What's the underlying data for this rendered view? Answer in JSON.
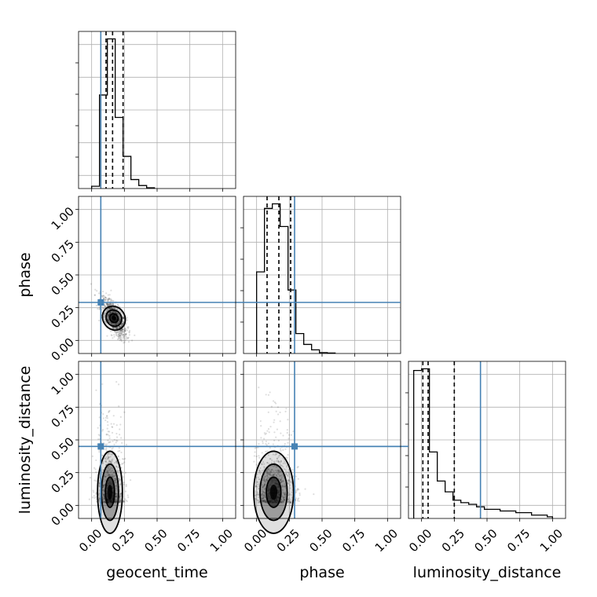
{
  "chart_data": {
    "type": "corner",
    "parameters": [
      "geocent_time",
      "phase",
      "luminosity_distance"
    ],
    "axis_range": [
      -0.1,
      1.1
    ],
    "ticks": [
      0.0,
      0.25,
      0.5,
      0.75,
      1.0
    ],
    "tick_labels": [
      "0.00",
      "0.25",
      "0.50",
      "0.75",
      "1.00"
    ],
    "grid": true,
    "truth_color": "#4682b4",
    "truths": {
      "geocent_time": 0.07,
      "phase": 0.29,
      "luminosity_distance": 0.45
    },
    "quantiles": {
      "geocent_time": [
        0.11,
        0.16,
        0.24
      ],
      "phase": [
        0.08,
        0.17,
        0.26
      ],
      "luminosity_distance": [
        0.01,
        0.05,
        0.25
      ]
    },
    "histograms": {
      "geocent_time": {
        "bin_edges": [
          0.0,
          0.06,
          0.12,
          0.18,
          0.24,
          0.3,
          0.36,
          0.42,
          0.48
        ],
        "counts": [
          3,
          125,
          200,
          95,
          43,
          12,
          4,
          1
        ]
      },
      "phase": {
        "bin_edges": [
          0.0,
          0.06,
          0.12,
          0.18,
          0.24,
          0.3,
          0.36,
          0.42,
          0.48,
          0.54,
          0.6
        ],
        "counts": [
          90,
          160,
          165,
          140,
          70,
          22,
          10,
          4,
          1,
          0.5
        ]
      },
      "luminosity_distance": {
        "bin_edges": [
          -0.06,
          0.0,
          0.06,
          0.12,
          0.18,
          0.24,
          0.3,
          0.36,
          0.42,
          0.48,
          0.6,
          0.72,
          0.84,
          0.96,
          1.0
        ],
        "counts": [
          178,
          180,
          80,
          45,
          32,
          22,
          19,
          17,
          14,
          11,
          9,
          7,
          4,
          2
        ]
      }
    },
    "pairs": [
      {
        "x": "geocent_time",
        "y": "phase",
        "center": [
          0.17,
          0.17
        ],
        "spread": [
          0.05,
          0.08
        ],
        "corr": -0.7
      },
      {
        "x": "geocent_time",
        "y": "luminosity_distance",
        "center": [
          0.14,
          0.1
        ],
        "spread": [
          0.05,
          0.22
        ],
        "corr": 0.0
      },
      {
        "x": "phase",
        "y": "luminosity_distance",
        "center": [
          0.13,
          0.1
        ],
        "spread": [
          0.08,
          0.22
        ],
        "corr": 0.0
      }
    ]
  }
}
